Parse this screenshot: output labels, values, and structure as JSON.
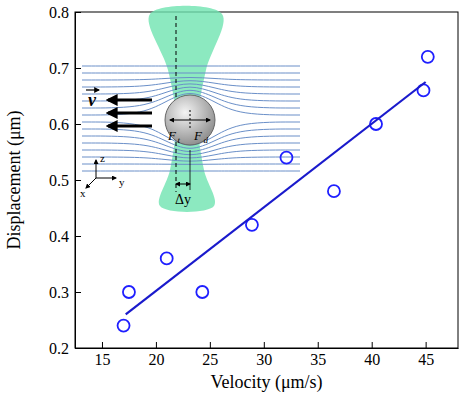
{
  "chart_data": {
    "type": "scatter",
    "x_label": "Velocity (μm/s)",
    "y_label": "Displacement (μm)",
    "xlim": [
      12.5,
      48
    ],
    "ylim": [
      0.2,
      0.8
    ],
    "xticks": [
      15,
      20,
      25,
      30,
      35,
      40,
      45
    ],
    "yticks": [
      0.2,
      0.3,
      0.4,
      0.5,
      0.6,
      0.7,
      0.8
    ],
    "series": [
      {
        "type": "scatter",
        "marker": "circle",
        "color": "#1f1fff",
        "x": [
          17.0,
          17.5,
          21.0,
          24.3,
          28.9,
          32.1,
          36.5,
          40.4,
          44.8,
          45.2
        ],
        "values": [
          0.24,
          0.3,
          0.36,
          0.3,
          0.42,
          0.54,
          0.48,
          0.6,
          0.66,
          0.72
        ]
      },
      {
        "type": "line",
        "line_style": "solid",
        "color": "#1a1acc",
        "x": [
          17.2,
          45.0
        ],
        "values": [
          0.26,
          0.675
        ]
      }
    ],
    "annotations": [
      {
        "text": "v"
      },
      {
        "text": "F",
        "sub": "t"
      },
      {
        "text": "F",
        "sub": "d"
      },
      {
        "text": "Δy"
      },
      {
        "text": "z"
      },
      {
        "text": "x"
      },
      {
        "text": "y"
      }
    ]
  }
}
